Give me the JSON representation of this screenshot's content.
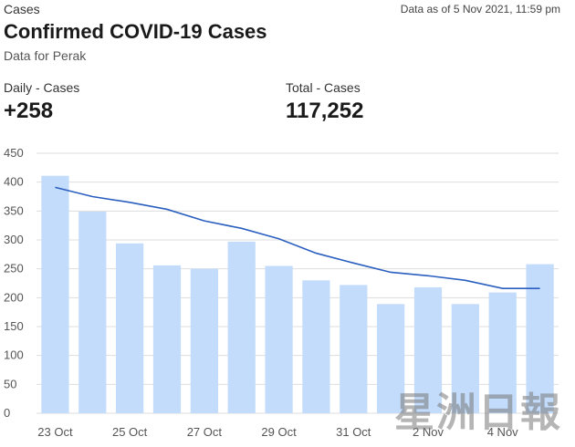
{
  "header": {
    "section": "Cases",
    "as_of": "Data as of 5 Nov 2021, 11:59 pm",
    "title": "Confirmed COVID-19 Cases",
    "subtitle": "Data for Perak"
  },
  "stats": {
    "daily_label": "Daily - Cases",
    "daily_value": "+258",
    "total_label": "Total - Cases",
    "total_value": "117,252"
  },
  "watermark": "星洲日報",
  "colors": {
    "bar": "#c3dcfb",
    "line": "#2a5fbf",
    "grid": "#dddddd"
  },
  "chart_data": {
    "type": "bar",
    "categories": [
      "23 Oct",
      "24 Oct",
      "25 Oct",
      "26 Oct",
      "27 Oct",
      "28 Oct",
      "29 Oct",
      "30 Oct",
      "31 Oct",
      "1 Nov",
      "2 Nov",
      "3 Nov",
      "4 Nov",
      "5 Nov"
    ],
    "tick_labels": [
      "23 Oct",
      "",
      "25 Oct",
      "",
      "27 Oct",
      "",
      "29 Oct",
      "",
      "31 Oct",
      "",
      "2 Nov",
      "",
      "4 Nov",
      ""
    ],
    "series": [
      {
        "type": "bar",
        "values": [
          411,
          349,
          294,
          256,
          250,
          297,
          255,
          230,
          222,
          189,
          218,
          189,
          209,
          258
        ]
      },
      {
        "type": "line",
        "values": [
          391,
          375,
          365,
          353,
          333,
          320,
          302,
          277,
          260,
          244,
          238,
          230,
          216,
          216
        ]
      }
    ],
    "ylim": [
      0,
      450
    ],
    "yticks": [
      0,
      50,
      100,
      150,
      200,
      250,
      300,
      350,
      400,
      450
    ],
    "grid": true,
    "title": "",
    "xlabel": "",
    "ylabel": ""
  }
}
